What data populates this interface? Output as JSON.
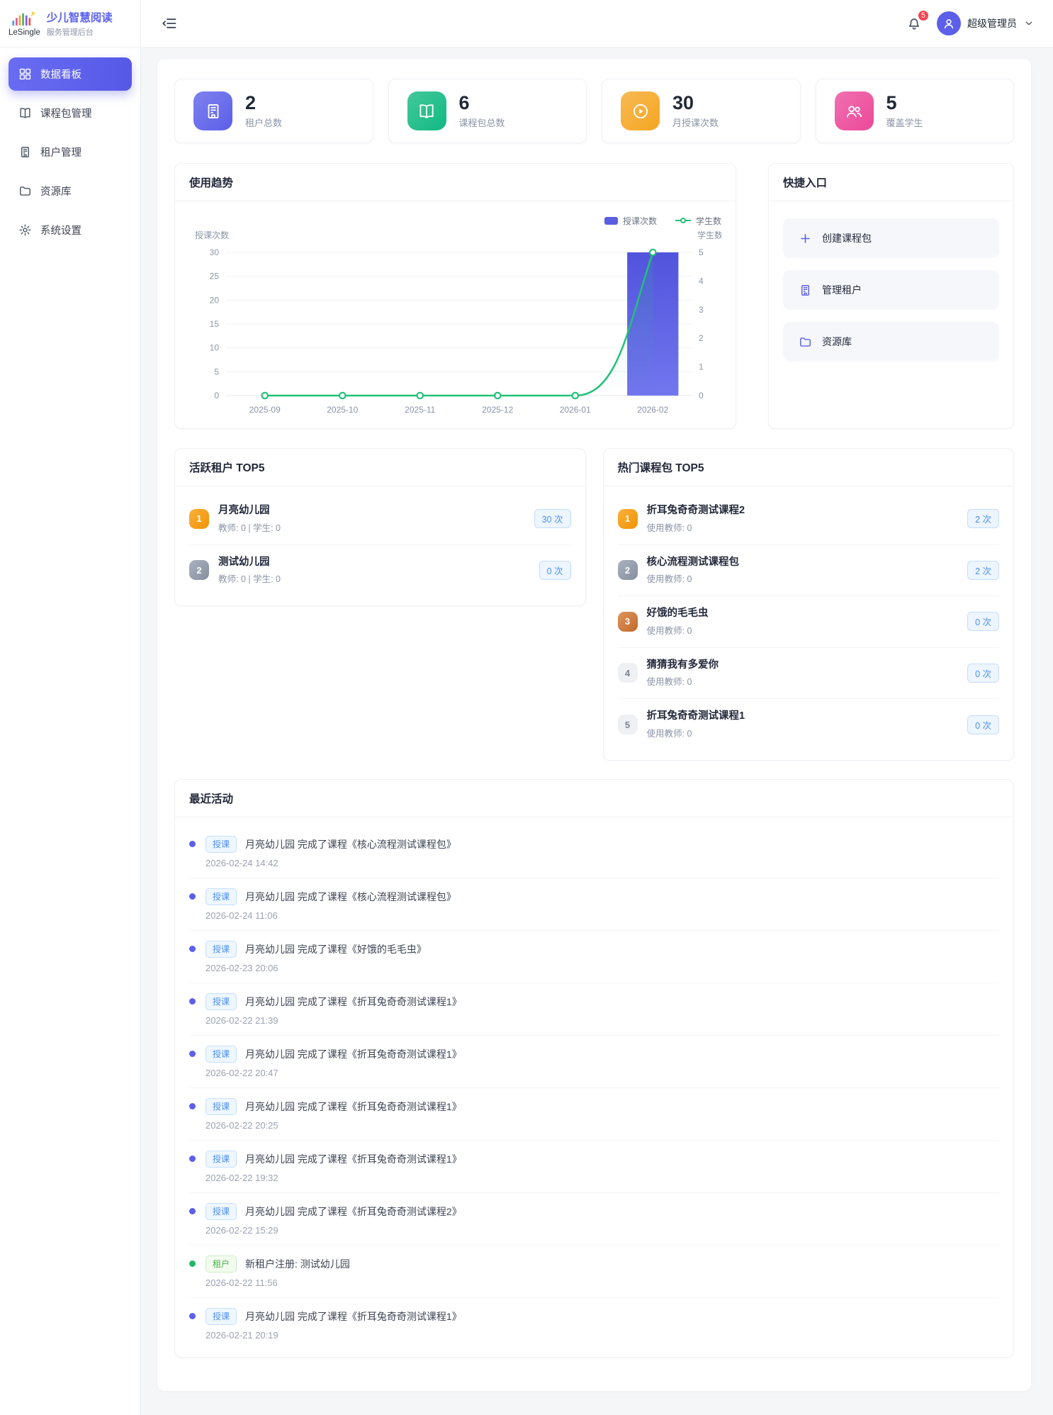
{
  "sidebar": {
    "logo_name": "LeSingle",
    "app_title": "少儿智慧阅读",
    "app_subtitle": "服务管理后台",
    "items": [
      {
        "label": "数据看板",
        "icon": "dashboard-icon",
        "active": true
      },
      {
        "label": "课程包管理",
        "icon": "book-icon",
        "active": false
      },
      {
        "label": "租户管理",
        "icon": "building-icon",
        "active": false
      },
      {
        "label": "资源库",
        "icon": "folder-icon",
        "active": false
      },
      {
        "label": "系统设置",
        "icon": "gear-icon",
        "active": false
      }
    ]
  },
  "header": {
    "notification_count": "5",
    "username": "超级管理员"
  },
  "colors": {
    "primary": "#5b5fe9",
    "bar_series": "#5b5ee0",
    "line_series": "#22c177",
    "notification_red": "#f5434e"
  },
  "stats": [
    {
      "value": "2",
      "label": "租户总数",
      "icon": "building-icon",
      "color": "#5b5fe9"
    },
    {
      "value": "6",
      "label": "课程包总数",
      "icon": "book-icon",
      "color": "#10b981"
    },
    {
      "value": "30",
      "label": "月授课次数",
      "icon": "play-icon",
      "color": "#f5a623"
    },
    {
      "value": "5",
      "label": "覆盖学生",
      "icon": "students-icon",
      "color": "#ec4899"
    }
  ],
  "chart_card": {
    "title": "使用趋势"
  },
  "chart_data": {
    "type": "bar",
    "categories": [
      "2025-09",
      "2025-10",
      "2025-11",
      "2025-12",
      "2026-01",
      "2026-02"
    ],
    "series": [
      {
        "name": "授课次数",
        "type": "bar",
        "axis": "left",
        "color": "#5b5ee0",
        "values": [
          0,
          0,
          0,
          0,
          0,
          30
        ]
      },
      {
        "name": "学生数",
        "type": "line",
        "axis": "right",
        "color": "#22c177",
        "values": [
          0,
          0,
          0,
          0,
          0,
          5
        ]
      }
    ],
    "left_axis": {
      "name": "授课次数",
      "min": 0,
      "max": 30,
      "step": 5
    },
    "right_axis": {
      "name": "学生数",
      "min": 0,
      "max": 5,
      "step": 1
    },
    "grid": true,
    "legend_position": "top-right"
  },
  "quick_entry": {
    "title": "快捷入口",
    "items": [
      {
        "label": "创建课程包",
        "icon": "plus-icon"
      },
      {
        "label": "管理租户",
        "icon": "building-icon"
      },
      {
        "label": "资源库",
        "icon": "folder-icon"
      }
    ]
  },
  "active_tenants": {
    "title": "活跃租户 TOP5",
    "rows": [
      {
        "rank": "1",
        "name": "月亮幼儿园",
        "meta": "教师: 0 | 学生: 0",
        "count": "30 次"
      },
      {
        "rank": "2",
        "name": "测试幼儿园",
        "meta": "教师: 0 | 学生: 0",
        "count": "0 次"
      }
    ]
  },
  "hot_packages": {
    "title": "热门课程包 TOP5",
    "rows": [
      {
        "rank": "1",
        "name": "折耳兔奇奇测试课程2",
        "meta": "使用教师: 0",
        "count": "2 次"
      },
      {
        "rank": "2",
        "name": "核心流程测试课程包",
        "meta": "使用教师: 0",
        "count": "2 次"
      },
      {
        "rank": "3",
        "name": "好饿的毛毛虫",
        "meta": "使用教师: 0",
        "count": "0 次"
      },
      {
        "rank": "4",
        "name": "猜猜我有多爱你",
        "meta": "使用教师: 0",
        "count": "0 次"
      },
      {
        "rank": "5",
        "name": "折耳兔奇奇测试课程1",
        "meta": "使用教师: 0",
        "count": "0 次"
      }
    ]
  },
  "recent_activity": {
    "title": "最近活动",
    "rows": [
      {
        "type": "授课",
        "message": "月亮幼儿园 完成了课程《核心流程测试课程包》",
        "time": "2026-02-24 14:42"
      },
      {
        "type": "授课",
        "message": "月亮幼儿园 完成了课程《核心流程测试课程包》",
        "time": "2026-02-24 11:06"
      },
      {
        "type": "授课",
        "message": "月亮幼儿园 完成了课程《好饿的毛毛虫》",
        "time": "2026-02-23 20:06"
      },
      {
        "type": "授课",
        "message": "月亮幼儿园 完成了课程《折耳兔奇奇测试课程1》",
        "time": "2026-02-22 21:39"
      },
      {
        "type": "授课",
        "message": "月亮幼儿园 完成了课程《折耳兔奇奇测试课程1》",
        "time": "2026-02-22 20:47"
      },
      {
        "type": "授课",
        "message": "月亮幼儿园 完成了课程《折耳兔奇奇测试课程1》",
        "time": "2026-02-22 20:25"
      },
      {
        "type": "授课",
        "message": "月亮幼儿园 完成了课程《折耳兔奇奇测试课程1》",
        "time": "2026-02-22 19:32"
      },
      {
        "type": "授课",
        "message": "月亮幼儿园 完成了课程《折耳兔奇奇测试课程2》",
        "time": "2026-02-22 15:29"
      },
      {
        "type": "租户",
        "message": "新租户注册: 测试幼儿园",
        "time": "2026-02-22 11:56"
      },
      {
        "type": "授课",
        "message": "月亮幼儿园 完成了课程《折耳兔奇奇测试课程1》",
        "time": "2026-02-21 20:19"
      }
    ]
  }
}
